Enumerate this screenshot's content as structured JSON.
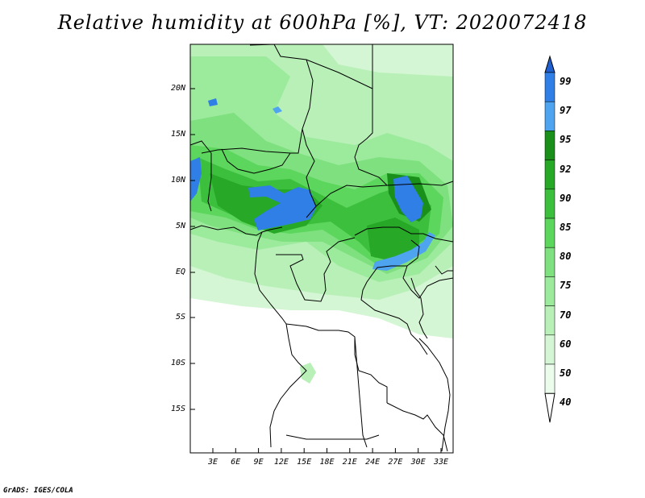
{
  "title": "Relative humidity at 600hPa [%], VT: 2020072418",
  "credit": "GrADS: IGES/COLA",
  "map": {
    "lat_labels": [
      "20N",
      "15N",
      "10N",
      "5N",
      "EQ",
      "5S",
      "10S",
      "15S"
    ],
    "lon_labels": [
      "3E",
      "6E",
      "9E",
      "12E",
      "15E",
      "18E",
      "21E",
      "24E",
      "27E",
      "30E",
      "33E"
    ]
  },
  "colorbar": {
    "labels": [
      "99",
      "97",
      "95",
      "92",
      "90",
      "85",
      "80",
      "75",
      "70",
      "60",
      "50",
      "40"
    ],
    "colors": [
      "#1f5fd0",
      "#2f7fe6",
      "#4fa4f0",
      "#1a8f1a",
      "#27a827",
      "#3cbf3c",
      "#5cd65c",
      "#7ee07e",
      "#9cea9c",
      "#b8f0b8",
      "#d4f6d4",
      "#ecfcec",
      "#ffffff"
    ]
  }
}
